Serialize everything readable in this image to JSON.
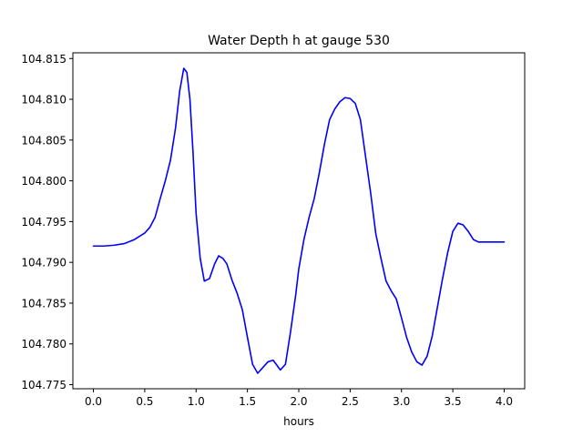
{
  "chart_data": {
    "type": "line",
    "title": "Water Depth h at gauge 530",
    "xlabel": "hours",
    "ylabel": "",
    "xlim": [
      -0.2,
      4.2
    ],
    "ylim": [
      104.7745,
      104.8157
    ],
    "xticks": [
      0.0,
      0.5,
      1.0,
      1.5,
      2.0,
      2.5,
      3.0,
      3.5,
      4.0
    ],
    "xtick_labels": [
      "0.0",
      "0.5",
      "1.0",
      "1.5",
      "2.0",
      "2.5",
      "3.0",
      "3.5",
      "4.0"
    ],
    "yticks": [
      104.775,
      104.78,
      104.785,
      104.79,
      104.795,
      104.8,
      104.805,
      104.81,
      104.815
    ],
    "ytick_labels": [
      "104.775",
      "104.780",
      "104.785",
      "104.790",
      "104.795",
      "104.800",
      "104.805",
      "104.810",
      "104.815"
    ],
    "grid": false,
    "series": [
      {
        "color": "#0000ff",
        "x": [
          0.0,
          0.1,
          0.2,
          0.3,
          0.4,
          0.5,
          0.55,
          0.6,
          0.65,
          0.7,
          0.75,
          0.8,
          0.84,
          0.88,
          0.91,
          0.94,
          0.97,
          1.0,
          1.04,
          1.08,
          1.13,
          1.18,
          1.22,
          1.26,
          1.3,
          1.35,
          1.4,
          1.45,
          1.5,
          1.55,
          1.6,
          1.65,
          1.7,
          1.75,
          1.78,
          1.82,
          1.87,
          1.92,
          1.97,
          2.0,
          2.05,
          2.1,
          2.15,
          2.2,
          2.25,
          2.3,
          2.35,
          2.4,
          2.45,
          2.5,
          2.55,
          2.6,
          2.65,
          2.7,
          2.75,
          2.8,
          2.85,
          2.9,
          2.95,
          3.0,
          3.05,
          3.1,
          3.15,
          3.2,
          3.25,
          3.3,
          3.35,
          3.4,
          3.45,
          3.5,
          3.55,
          3.6,
          3.65,
          3.7,
          3.75,
          3.8,
          3.85,
          3.9,
          3.95,
          4.0
        ],
        "y": [
          104.792,
          104.792,
          104.7921,
          104.7923,
          104.7928,
          104.7936,
          104.7943,
          104.7955,
          104.7978,
          104.8,
          104.8025,
          104.8065,
          104.811,
          104.8138,
          104.8133,
          104.81,
          104.8035,
          104.796,
          104.7905,
          104.7877,
          104.788,
          104.7898,
          104.7908,
          104.7905,
          104.7898,
          104.7878,
          104.7862,
          104.7842,
          104.7808,
          104.7775,
          104.7764,
          104.7771,
          104.7778,
          104.778,
          104.7775,
          104.7768,
          104.7775,
          104.7815,
          104.786,
          104.7892,
          104.7928,
          104.7955,
          104.7978,
          104.801,
          104.8045,
          104.8075,
          104.8088,
          104.8097,
          104.8102,
          104.8101,
          104.8095,
          104.8075,
          104.803,
          104.7985,
          104.7935,
          104.7905,
          104.7877,
          104.7865,
          104.7855,
          104.7832,
          104.7808,
          104.779,
          104.7778,
          104.7774,
          104.7785,
          104.781,
          104.7845,
          104.788,
          104.7912,
          104.7938,
          104.7948,
          104.7946,
          104.7938,
          104.7928,
          104.7925,
          104.7925,
          104.7925,
          104.7925,
          104.7925,
          104.7925
        ]
      }
    ]
  }
}
